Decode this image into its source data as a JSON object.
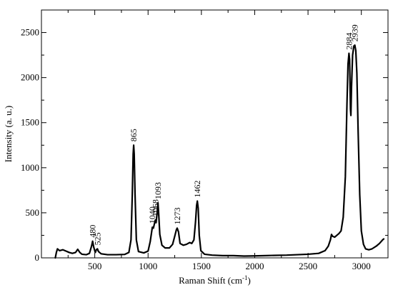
{
  "chart_data": {
    "type": "line",
    "title": "",
    "xlabel": "Raman Shift (cm",
    "xlabel_sup": "-1",
    "xlabel_suffix": ")",
    "ylabel": "Intensity (a. u.)",
    "xlim": [
      0,
      3250
    ],
    "ylim": [
      0,
      2750
    ],
    "x_ticks": [
      500,
      1000,
      1500,
      2000,
      2500,
      3000
    ],
    "y_ticks": [
      0,
      500,
      1000,
      1500,
      2000,
      2500
    ],
    "grid": false,
    "series": [
      {
        "color": "#000000",
        "points": [
          [
            130,
            0
          ],
          [
            140,
            60
          ],
          [
            150,
            100
          ],
          [
            170,
            80
          ],
          [
            200,
            90
          ],
          [
            230,
            75
          ],
          [
            260,
            60
          ],
          [
            290,
            50
          ],
          [
            320,
            60
          ],
          [
            340,
            95
          ],
          [
            360,
            60
          ],
          [
            380,
            40
          ],
          [
            420,
            35
          ],
          [
            450,
            50
          ],
          [
            470,
            130
          ],
          [
            480,
            185
          ],
          [
            490,
            120
          ],
          [
            505,
            60
          ],
          [
            515,
            90
          ],
          [
            525,
            100
          ],
          [
            535,
            70
          ],
          [
            560,
            45
          ],
          [
            620,
            35
          ],
          [
            700,
            35
          ],
          [
            780,
            38
          ],
          [
            820,
            60
          ],
          [
            840,
            200
          ],
          [
            852,
            700
          ],
          [
            860,
            1150
          ],
          [
            865,
            1250
          ],
          [
            870,
            1150
          ],
          [
            878,
            700
          ],
          [
            890,
            200
          ],
          [
            910,
            70
          ],
          [
            960,
            55
          ],
          [
            1000,
            75
          ],
          [
            1020,
            180
          ],
          [
            1035,
            300
          ],
          [
            1040,
            340
          ],
          [
            1050,
            330
          ],
          [
            1060,
            380
          ],
          [
            1068,
            420
          ],
          [
            1075,
            390
          ],
          [
            1085,
            500
          ],
          [
            1093,
            610
          ],
          [
            1100,
            480
          ],
          [
            1110,
            260
          ],
          [
            1130,
            140
          ],
          [
            1160,
            110
          ],
          [
            1200,
            110
          ],
          [
            1230,
            150
          ],
          [
            1250,
            240
          ],
          [
            1265,
            310
          ],
          [
            1273,
            330
          ],
          [
            1285,
            290
          ],
          [
            1300,
            160
          ],
          [
            1330,
            140
          ],
          [
            1360,
            150
          ],
          [
            1390,
            170
          ],
          [
            1410,
            160
          ],
          [
            1430,
            200
          ],
          [
            1445,
            400
          ],
          [
            1455,
            580
          ],
          [
            1462,
            630
          ],
          [
            1470,
            550
          ],
          [
            1480,
            250
          ],
          [
            1495,
            80
          ],
          [
            1530,
            40
          ],
          [
            1600,
            30
          ],
          [
            1700,
            25
          ],
          [
            1800,
            25
          ],
          [
            1900,
            20
          ],
          [
            2000,
            22
          ],
          [
            2100,
            25
          ],
          [
            2200,
            28
          ],
          [
            2300,
            30
          ],
          [
            2400,
            35
          ],
          [
            2500,
            40
          ],
          [
            2600,
            50
          ],
          [
            2660,
            80
          ],
          [
            2690,
            130
          ],
          [
            2710,
            200
          ],
          [
            2720,
            260
          ],
          [
            2730,
            240
          ],
          [
            2750,
            230
          ],
          [
            2770,
            250
          ],
          [
            2790,
            270
          ],
          [
            2810,
            300
          ],
          [
            2830,
            450
          ],
          [
            2850,
            900
          ],
          [
            2865,
            1700
          ],
          [
            2875,
            2150
          ],
          [
            2884,
            2270
          ],
          [
            2890,
            2200
          ],
          [
            2898,
            1650
          ],
          [
            2902,
            1580
          ],
          [
            2908,
            1900
          ],
          [
            2918,
            2250
          ],
          [
            2930,
            2350
          ],
          [
            2939,
            2360
          ],
          [
            2948,
            2300
          ],
          [
            2958,
            2050
          ],
          [
            2970,
            1400
          ],
          [
            2985,
            700
          ],
          [
            3000,
            300
          ],
          [
            3020,
            150
          ],
          [
            3040,
            100
          ],
          [
            3070,
            90
          ],
          [
            3100,
            100
          ],
          [
            3140,
            130
          ],
          [
            3170,
            160
          ],
          [
            3200,
            200
          ],
          [
            3210,
            210
          ]
        ]
      }
    ],
    "annotations": [
      {
        "text": "480",
        "x": 480,
        "y": 185
      },
      {
        "text": "525",
        "x": 525,
        "y": 100
      },
      {
        "text": "865",
        "x": 865,
        "y": 1250
      },
      {
        "text": "1040",
        "x": 1040,
        "y": 340
      },
      {
        "text": "1068",
        "x": 1068,
        "y": 420
      },
      {
        "text": "1093",
        "x": 1093,
        "y": 610
      },
      {
        "text": "1273",
        "x": 1273,
        "y": 330
      },
      {
        "text": "1462",
        "x": 1462,
        "y": 630
      },
      {
        "text": "2884",
        "x": 2884,
        "y": 2270
      },
      {
        "text": "2939",
        "x": 2939,
        "y": 2360
      }
    ]
  }
}
